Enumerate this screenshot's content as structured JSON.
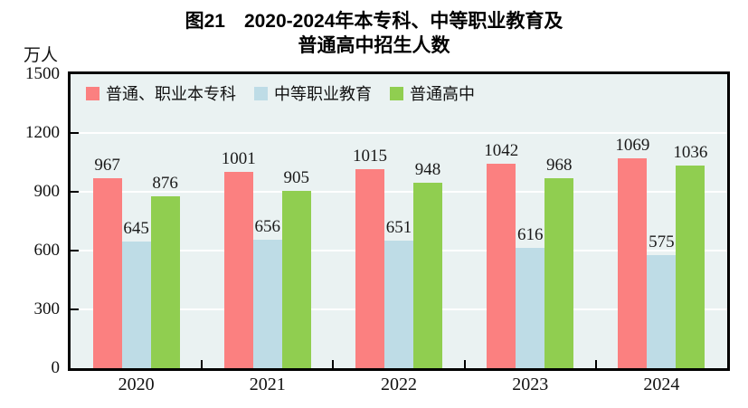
{
  "title": {
    "line1": "图21　2020-2024年本专科、中等职业教育及",
    "line2": "普通高中招生人数"
  },
  "chart_data": {
    "type": "bar",
    "title": "图21 2020-2024年本专科、中等职业教育及普通高中招生人数",
    "unit_label": "万人",
    "xlabel": "",
    "ylabel": "万人",
    "categories": [
      "2020",
      "2021",
      "2022",
      "2023",
      "2024"
    ],
    "series": [
      {
        "name": "普通、职业本专科",
        "color": "#FB8080",
        "values": [
          967,
          1001,
          1015,
          1042,
          1069
        ]
      },
      {
        "name": "中等职业教育",
        "color": "#BEDCE6",
        "values": [
          645,
          656,
          651,
          616,
          575
        ]
      },
      {
        "name": "普通高中",
        "color": "#90CE50",
        "values": [
          876,
          905,
          948,
          968,
          1036
        ]
      }
    ],
    "ylim": [
      0,
      1500
    ],
    "yticks": [
      0,
      300,
      600,
      900,
      1200,
      1500
    ],
    "grid": true,
    "gridline_color": "#FFFFFF",
    "plot_background": "#EAF2F2",
    "axis_color": "#000000",
    "legend_position": "top-left-inside"
  }
}
